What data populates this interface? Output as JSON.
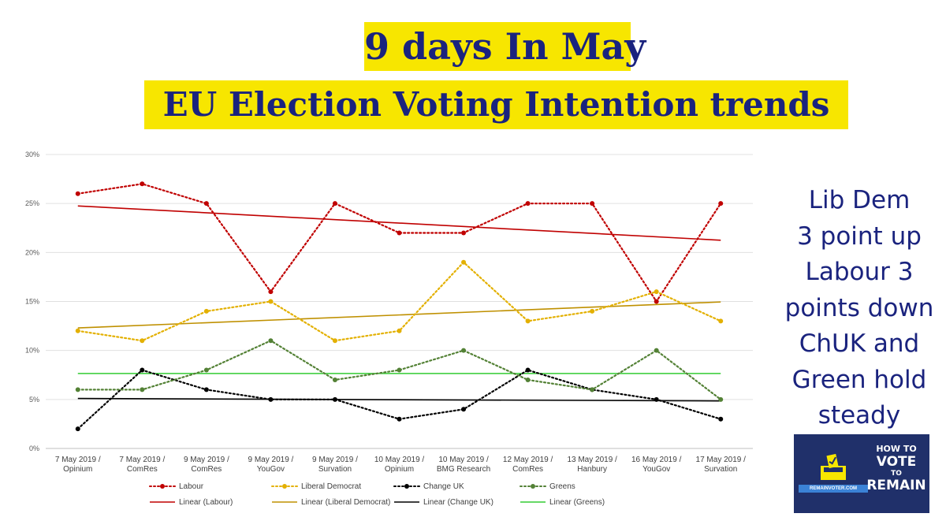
{
  "title_line1": "9 days In May",
  "title_line2": "EU Election Voting Intention trends",
  "side_text": [
    "Lib Dem",
    "3 point up",
    "Labour 3",
    "points down",
    "ChUK and",
    "Green hold",
    "steady"
  ],
  "badge": {
    "line1": "HOW TO",
    "line2": "VOTE",
    "line3": "TO",
    "line4": "REMAIN",
    "url": "REMAINVOTER.COM"
  },
  "colors": {
    "title_bg": "#f7e600",
    "title_text": "#1a237e",
    "labour": "#c00000",
    "libdem": "#e3b000",
    "libdem_trend": "#bf9000",
    "changeuk": "#000000",
    "greens": "#538135",
    "greens_trend": "#33cc33",
    "badge_bg": "#20306a"
  },
  "chart_data": {
    "type": "line",
    "categories": [
      [
        "7 May 2019 /",
        "Opinium"
      ],
      [
        "7 May 2019 /",
        "ComRes"
      ],
      [
        "9 May 2019 /",
        "ComRes"
      ],
      [
        "9 May 2019 /",
        "YouGov"
      ],
      [
        "9 May 2019 /",
        "Survation"
      ],
      [
        "10 May 2019 /",
        "Opinium"
      ],
      [
        "10 May 2019 /",
        "BMG Research"
      ],
      [
        "12 May 2019 /",
        "ComRes"
      ],
      [
        "13 May 2019 /",
        "Hanbury"
      ],
      [
        "16 May 2019 /",
        "YouGov"
      ],
      [
        "17 May 2019 /",
        "Survation"
      ]
    ],
    "ylim": [
      0,
      30
    ],
    "yticks": [
      "0%",
      "5%",
      "10%",
      "15%",
      "20%",
      "25%",
      "30%"
    ],
    "grid": true,
    "legend_position": "bottom",
    "series": [
      {
        "name": "Labour",
        "values": [
          26,
          27,
          25,
          16,
          25,
          22,
          22,
          25,
          25,
          15,
          25
        ],
        "color": "#c00000",
        "style": "dotted"
      },
      {
        "name": "Liberal Democrat",
        "values": [
          12,
          11,
          14,
          15,
          11,
          12,
          19,
          13,
          14,
          16,
          13
        ],
        "color": "#e3b000",
        "style": "dotted"
      },
      {
        "name": "Change UK",
        "values": [
          2,
          8,
          6,
          5,
          5,
          3,
          4,
          8,
          6,
          5,
          3
        ],
        "color": "#000000",
        "style": "dotted"
      },
      {
        "name": "Greens",
        "values": [
          6,
          6,
          8,
          11,
          7,
          8,
          10,
          7,
          6,
          10,
          5
        ],
        "color": "#538135",
        "style": "dotted"
      }
    ],
    "trendlines": [
      {
        "name": "Linear (Labour)",
        "from": 24.75,
        "to": 21.25,
        "color": "#c00000"
      },
      {
        "name": "Linear (Liberal Democrat)",
        "from": 12.3,
        "to": 14.95,
        "color": "#bf9000"
      },
      {
        "name": "Linear (Change UK)",
        "from": 5.1,
        "to": 4.85,
        "color": "#000000"
      },
      {
        "name": "Linear (Greens)",
        "from": 7.65,
        "to": 7.65,
        "color": "#33cc33"
      }
    ]
  }
}
